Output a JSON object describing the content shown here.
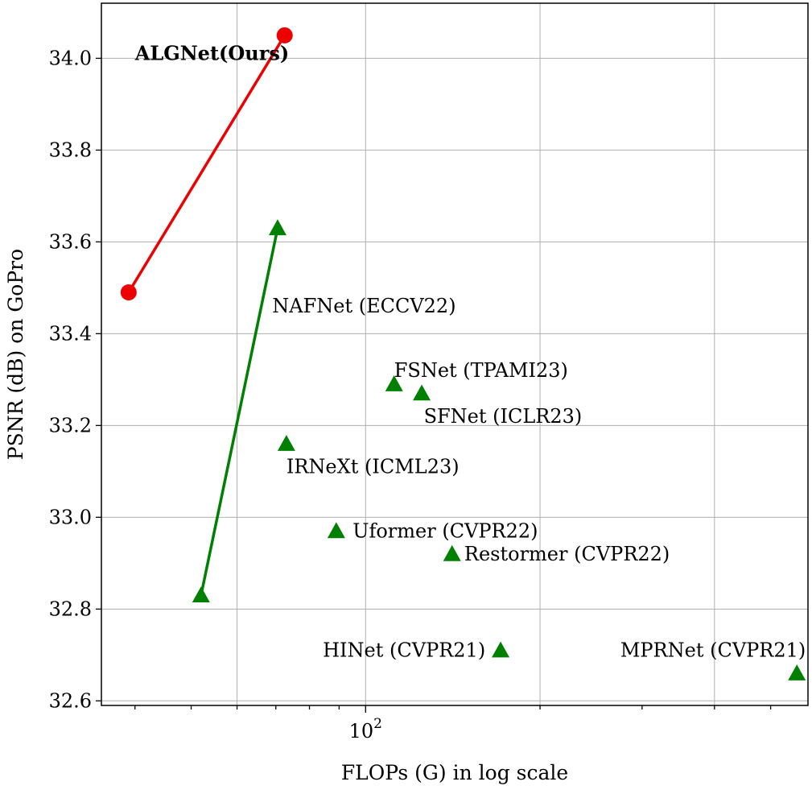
{
  "chart_data": {
    "type": "scatter",
    "title": "",
    "xlabel": "FLOPs (G) in log scale",
    "ylabel": "PSNR (dB) on GoPro",
    "xscale": "log",
    "xlim": [
      35,
      580
    ],
    "ylim": [
      32.59,
      34.12
    ],
    "grid": true,
    "x_ticks": [
      {
        "value": 100,
        "base": "10",
        "exp": "2"
      }
    ],
    "x_minor_ticks": [
      40,
      50,
      60,
      70,
      80,
      90,
      200,
      300,
      400,
      500
    ],
    "x_gridlines": [
      60,
      100,
      200,
      400
    ],
    "y_ticks": [
      {
        "value": 32.6,
        "label": "32.6"
      },
      {
        "value": 32.8,
        "label": "32.8"
      },
      {
        "value": 33.0,
        "label": "33.0"
      },
      {
        "value": 33.2,
        "label": "33.2"
      },
      {
        "value": 33.4,
        "label": "33.4"
      },
      {
        "value": 33.6,
        "label": "33.6"
      },
      {
        "value": 33.8,
        "label": "33.8"
      },
      {
        "value": 34.0,
        "label": "34.0"
      }
    ],
    "lines": [
      {
        "color": "#ee0000",
        "marker": "circle",
        "points": [
          [
            39,
            33.49
          ],
          [
            72.5,
            34.05
          ]
        ]
      },
      {
        "color": "#008000",
        "marker": "triangle",
        "points": [
          [
            52,
            32.83
          ],
          [
            70.5,
            33.63
          ]
        ]
      }
    ],
    "points": [
      {
        "label": "ALGNet(Ours)",
        "bold": true,
        "x": 72.5,
        "y": 34.05,
        "marker": "circle",
        "color": "#ee0000",
        "label_x": 40,
        "label_y": 34.01,
        "anchor": "start"
      },
      {
        "label": "",
        "x": 39,
        "y": 33.49,
        "marker": "circle",
        "color": "#ee0000"
      },
      {
        "label": "NAFNet (ECCV22)",
        "x": 70.5,
        "y": 33.63,
        "marker": "triangle",
        "color": "#008000",
        "label_x": 69,
        "label_y": 33.46,
        "anchor": "start"
      },
      {
        "label": "",
        "x": 52,
        "y": 32.83,
        "marker": "triangle",
        "color": "#008000"
      },
      {
        "label": "FSNet (TPAMI23)",
        "x": 112,
        "y": 33.29,
        "marker": "triangle",
        "color": "#008000",
        "label_x": 112,
        "label_y": 33.32,
        "anchor": "start"
      },
      {
        "label": "SFNet (ICLR23)",
        "x": 125,
        "y": 33.27,
        "marker": "triangle",
        "color": "#008000",
        "label_x": 126,
        "label_y": 33.22,
        "anchor": "start"
      },
      {
        "label": "IRNeXt (ICML23)",
        "x": 73,
        "y": 33.16,
        "marker": "triangle",
        "color": "#008000",
        "label_x": 73,
        "label_y": 33.11,
        "anchor": "start"
      },
      {
        "label": "Uformer (CVPR22)",
        "x": 89,
        "y": 32.97,
        "marker": "triangle",
        "color": "#008000",
        "label_x": 95,
        "label_y": 32.97,
        "anchor": "start"
      },
      {
        "label": "Restormer (CVPR22)",
        "x": 141,
        "y": 32.92,
        "marker": "triangle",
        "color": "#008000",
        "label_x": 148,
        "label_y": 32.92,
        "anchor": "start"
      },
      {
        "label": "HINet (CVPR21)",
        "x": 171,
        "y": 32.71,
        "marker": "triangle",
        "color": "#008000",
        "label_x": 161,
        "label_y": 32.71,
        "anchor": "end"
      },
      {
        "label": "MPRNet (CVPR21)",
        "x": 555,
        "y": 32.66,
        "marker": "triangle",
        "color": "#008000",
        "label_x": 575,
        "label_y": 32.71,
        "anchor": "end"
      }
    ]
  }
}
